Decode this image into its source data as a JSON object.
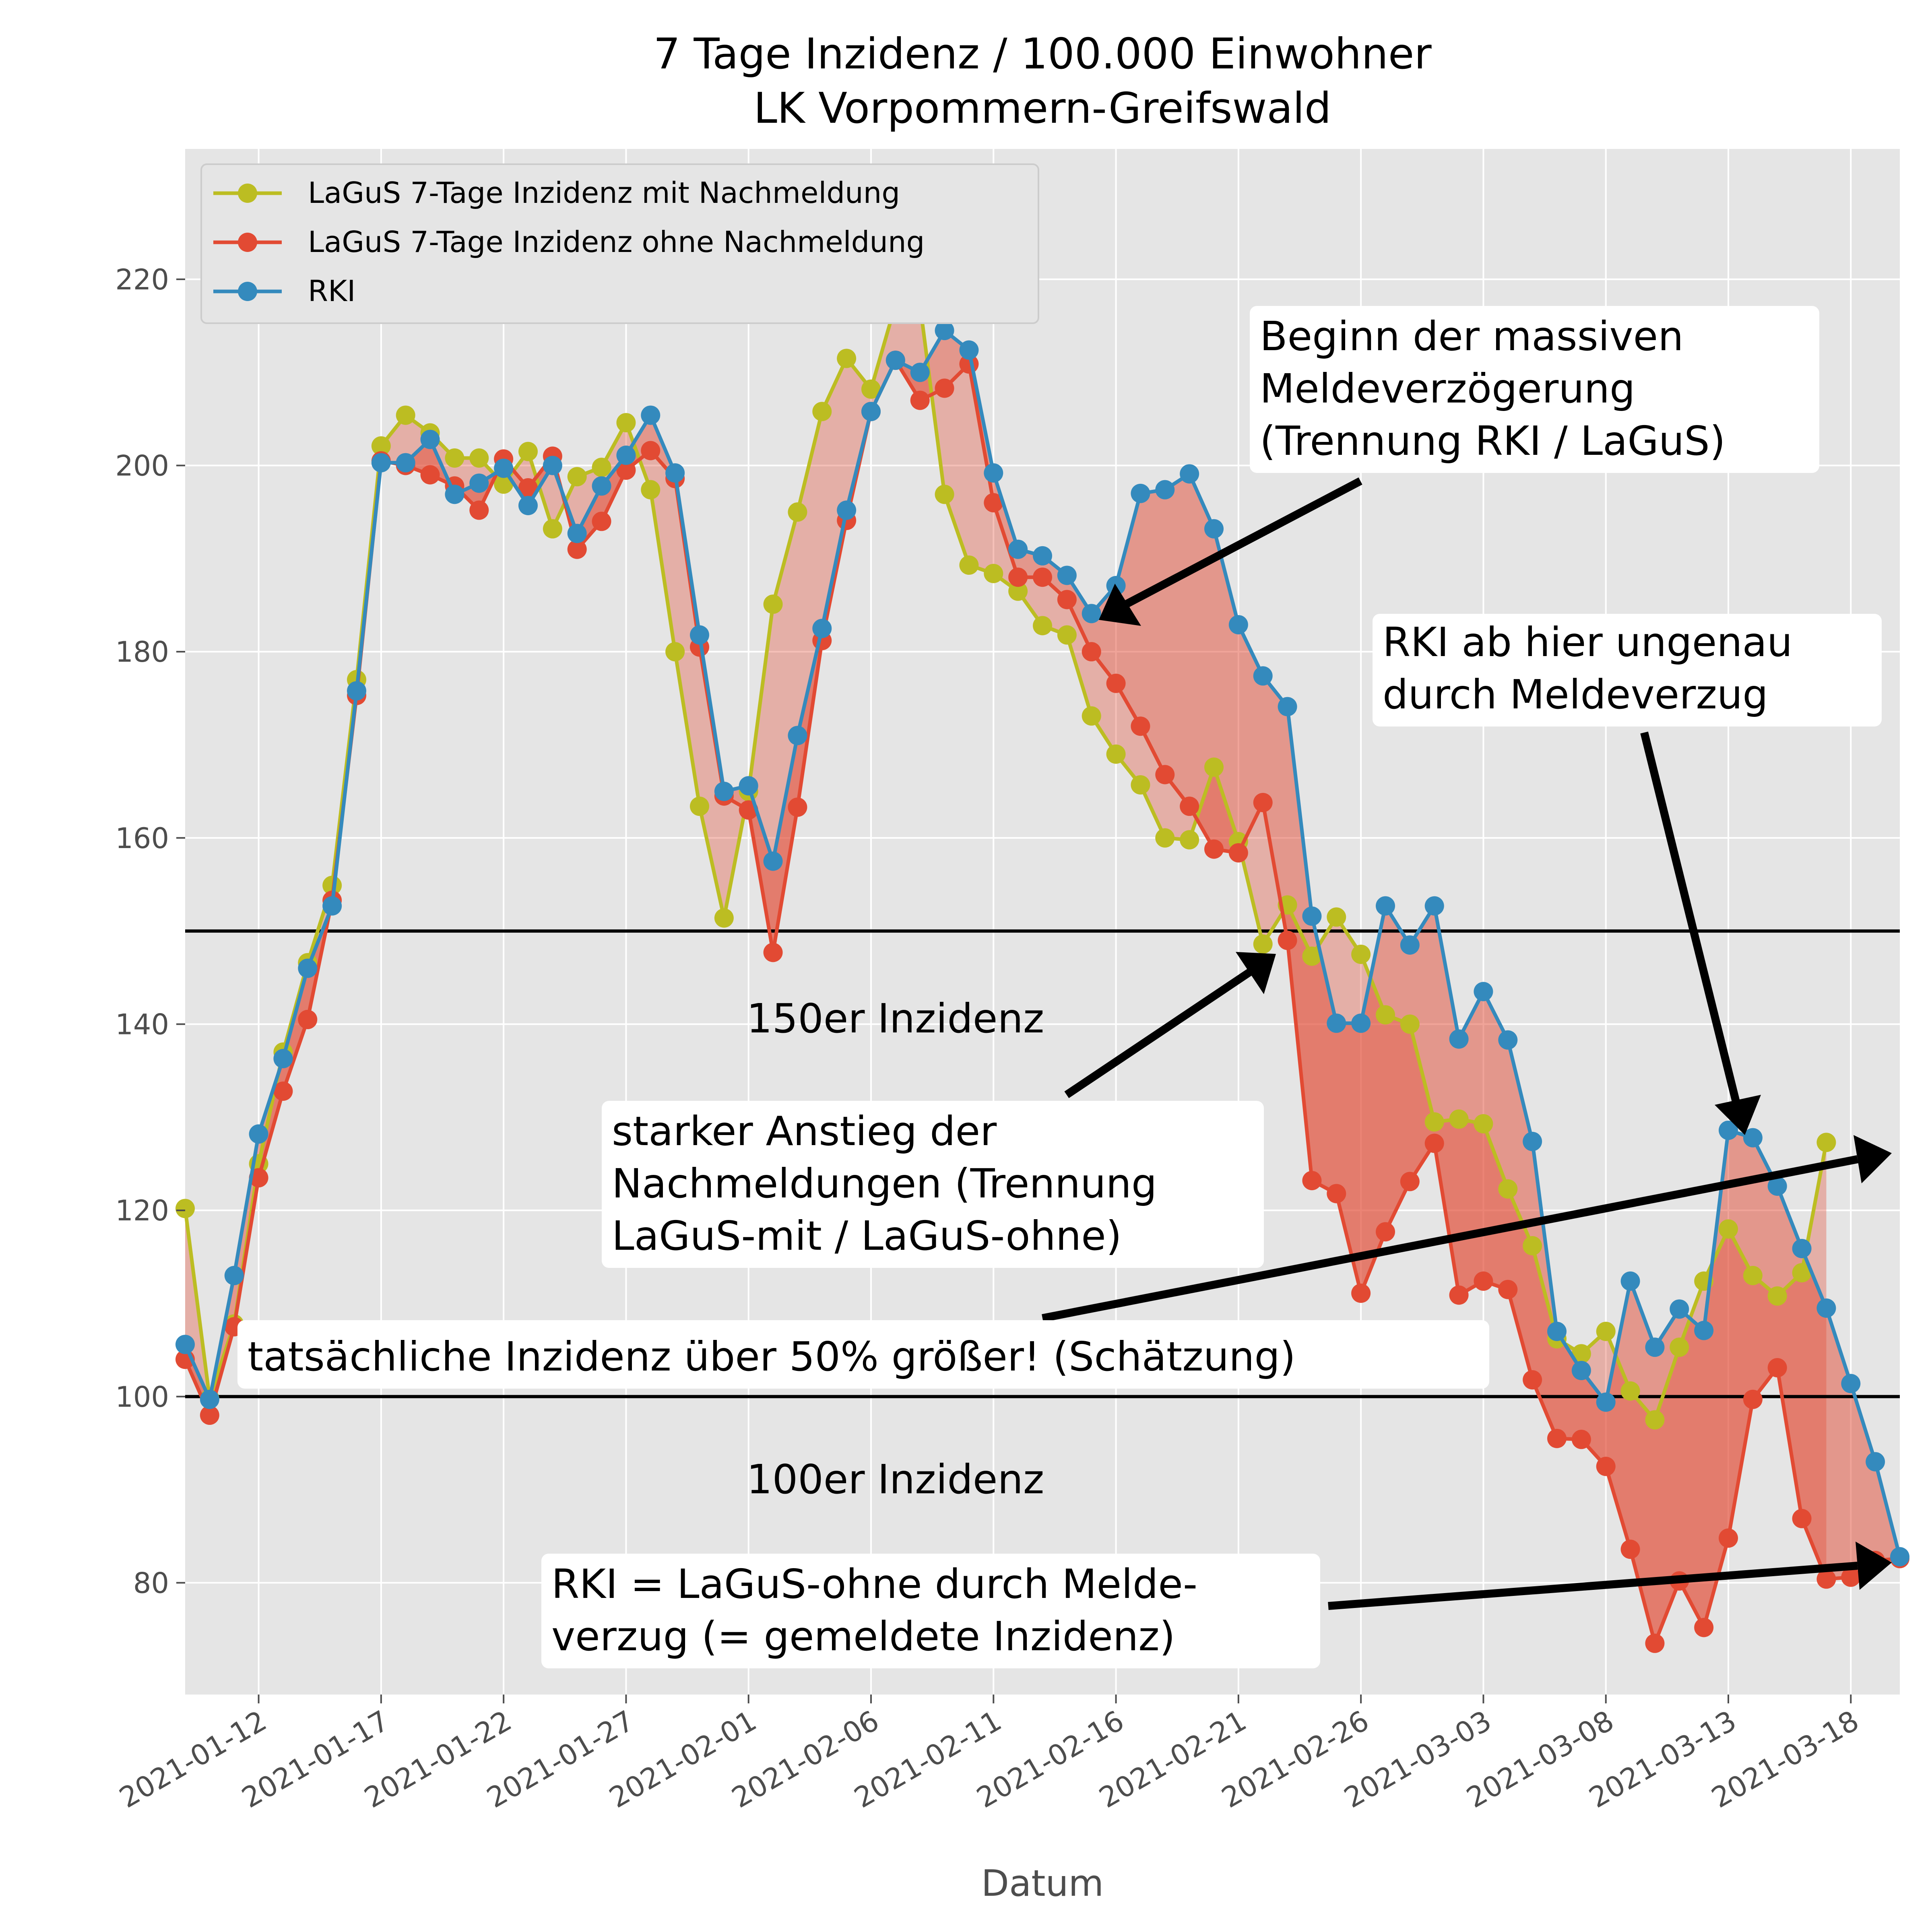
{
  "chart_data": {
    "type": "line",
    "title": [
      "7 Tage Inzidenz / 100.000 Einwohner",
      "LK Vorpommern-Greifswald"
    ],
    "xlabel": "Datum",
    "ylabel": "",
    "x_start": "2021-01-09",
    "x_end": "2021-03-20",
    "ylim": [
      68,
      234
    ],
    "yticks": [
      80,
      100,
      120,
      140,
      160,
      180,
      200,
      220
    ],
    "xticks": [
      "2021-01-12",
      "2021-01-17",
      "2021-01-22",
      "2021-01-27",
      "2021-02-01",
      "2021-02-06",
      "2021-02-11",
      "2021-02-16",
      "2021-02-21",
      "2021-02-26",
      "2021-03-03",
      "2021-03-08",
      "2021-03-13",
      "2021-03-18"
    ],
    "grid": true,
    "legend_position": "upper-left",
    "series": [
      {
        "name": "LaGuS 7-Tage Inzidenz mit Nachmeldung",
        "color": "#bcbd22",
        "values": [
          120.2,
          99.8,
          107.8,
          125.0,
          137.0,
          146.6,
          154.9,
          177.0,
          202.1,
          205.4,
          203.5,
          200.8,
          200.8,
          198.0,
          201.5,
          193.2,
          198.8,
          199.8,
          204.6,
          197.4,
          180.0,
          163.4,
          151.4,
          165.0,
          185.1,
          195.0,
          205.8,
          211.5,
          208.2,
          217.3,
          217.3,
          196.9,
          189.3,
          188.4,
          186.5,
          182.8,
          181.8,
          173.1,
          169.0,
          165.7,
          160.0,
          159.8,
          167.6,
          159.6,
          148.6,
          152.8,
          147.3,
          151.5,
          147.5,
          141.0,
          140.0,
          129.5,
          129.8,
          129.3,
          122.3,
          116.2,
          106.2,
          104.6,
          107.0,
          100.6,
          97.5,
          105.3,
          112.4,
          118.0,
          113.0,
          110.8,
          113.3,
          127.3
        ]
      },
      {
        "name": "LaGuS 7-Tage Inzidenz ohne Nachmeldung",
        "color": "#e24a33",
        "values": [
          104.0,
          98.0,
          107.5,
          123.5,
          132.8,
          140.5,
          153.3,
          175.3,
          200.5,
          200.0,
          199.0,
          197.8,
          195.2,
          200.7,
          197.6,
          201.0,
          191.0,
          194.0,
          199.5,
          201.6,
          198.6,
          180.5,
          164.5,
          163.0,
          147.7,
          163.3,
          181.2,
          194.1,
          205.8,
          211.3,
          207.0,
          208.3,
          210.9,
          196.0,
          188.0,
          188.0,
          185.6,
          180.0,
          176.6,
          172.0,
          166.8,
          163.4,
          158.8,
          158.4,
          163.8,
          149.0,
          123.2,
          121.8,
          111.1,
          117.7,
          123.1,
          127.2,
          110.9,
          112.4,
          111.5,
          101.8,
          95.5,
          95.4,
          92.5,
          83.6,
          73.5,
          80.2,
          75.2,
          84.8,
          99.7,
          103.1,
          86.9,
          80.4,
          80.6,
          82.4,
          82.6
        ]
      },
      {
        "name": "RKI",
        "color": "#348abd",
        "values": [
          105.6,
          99.7,
          113.0,
          128.2,
          136.3,
          146.0,
          152.7,
          175.8,
          200.3,
          200.3,
          202.8,
          196.9,
          198.1,
          199.7,
          195.7,
          200.0,
          192.7,
          197.8,
          201.1,
          205.4,
          199.2,
          181.8,
          165.0,
          165.6,
          157.5,
          171.0,
          182.5,
          195.2,
          205.8,
          211.3,
          210.0,
          214.5,
          212.4,
          199.2,
          191.0,
          190.3,
          188.2,
          184.1,
          187.1,
          197.0,
          197.4,
          199.1,
          193.2,
          182.9,
          177.4,
          174.1,
          151.6,
          140.1,
          140.1,
          152.7,
          148.5,
          152.7,
          138.4,
          143.5,
          138.3,
          127.4,
          107.0,
          102.8,
          99.4,
          112.4,
          105.3,
          109.4,
          107.1,
          128.6,
          127.8,
          122.6,
          115.9,
          109.5,
          101.4,
          93.0,
          82.8
        ]
      }
    ],
    "hlines": [
      {
        "y": 150,
        "label": "150er Inzidenz"
      },
      {
        "y": 100,
        "label": "100er Inzidenz"
      }
    ],
    "annotations": [
      {
        "lines": [
          "Beginn der massiven",
          "Meldeverzögerung",
          "(Trennung RKI / LaGuS)"
        ]
      },
      {
        "lines": [
          "RKI ab hier ungenau",
          "durch Meldeverzug"
        ]
      },
      {
        "lines": [
          "starker Anstieg der",
          "Nachmeldungen (Trennung",
          "LaGuS-mit / LaGuS-ohne)"
        ]
      },
      {
        "lines": [
          "tatsächliche Inzidenz über 50% größer! (Schätzung)"
        ]
      },
      {
        "lines": [
          "RKI = LaGuS-ohne durch Melde-",
          "verzug (= gemeldete Inzidenz)"
        ]
      }
    ]
  }
}
